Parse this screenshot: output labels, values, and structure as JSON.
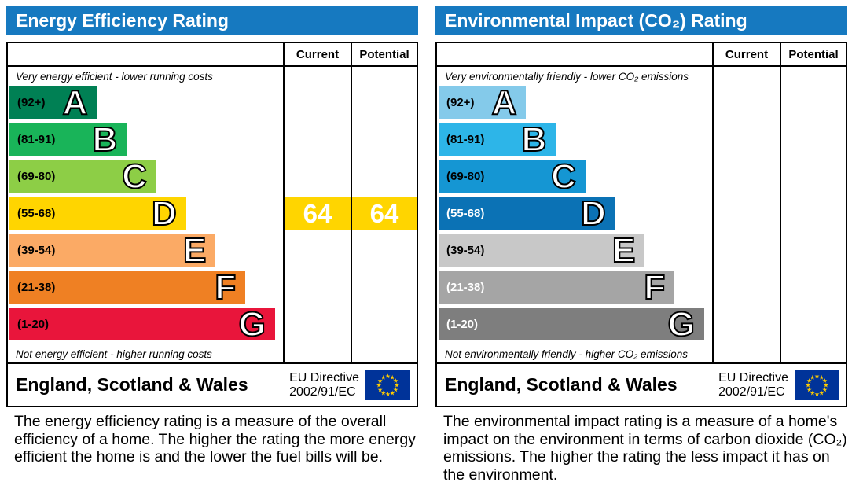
{
  "energy": {
    "title": "Energy Efficiency Rating",
    "columns": {
      "current": "Current",
      "potential": "Potential"
    },
    "top_caption": "Very energy efficient - lower running costs",
    "bottom_caption": "Not energy efficient - higher running costs",
    "bands": [
      {
        "range": "(92+)",
        "letter": "A",
        "color": "#008054",
        "width_pct": 32.0,
        "label_color": "#000000"
      },
      {
        "range": "(81-91)",
        "letter": "B",
        "color": "#19b459",
        "width_pct": 42.9,
        "label_color": "#000000"
      },
      {
        "range": "(69-80)",
        "letter": "C",
        "color": "#8dce46",
        "width_pct": 53.7,
        "label_color": "#000000"
      },
      {
        "range": "(55-68)",
        "letter": "D",
        "color": "#ffd500",
        "width_pct": 64.6,
        "label_color": "#000000"
      },
      {
        "range": "(39-54)",
        "letter": "E",
        "color": "#fbaa65",
        "width_pct": 75.4,
        "label_color": "#000000"
      },
      {
        "range": "(21-38)",
        "letter": "F",
        "color": "#ef8023",
        "width_pct": 86.3,
        "label_color": "#000000"
      },
      {
        "range": "(1-20)",
        "letter": "G",
        "color": "#e9153b",
        "width_pct": 97.1,
        "label_color": "#000000"
      }
    ],
    "ratings": {
      "current": "64",
      "potential": "64",
      "badge_color": "#ffd500"
    },
    "footer": {
      "region": "England, Scotland & Wales",
      "directive_line1": "EU Directive",
      "directive_line2": "2002/91/EC"
    },
    "description": "The energy efficiency rating is a measure of the overall efficiency of a home. The higher the rating the more energy efficient the home is and the lower the fuel bills will be."
  },
  "environment": {
    "title": "Environmental Impact (CO₂) Rating",
    "columns": {
      "current": "Current",
      "potential": "Potential"
    },
    "top_caption": "Very environmentally friendly - lower CO₂ emissions",
    "bottom_caption": "Not environmentally friendly - higher CO₂ emissions",
    "bands": [
      {
        "range": "(92+)",
        "letter": "A",
        "color": "#84caea",
        "width_pct": 32.0,
        "label_color": "#000000"
      },
      {
        "range": "(81-91)",
        "letter": "B",
        "color": "#2db5e8",
        "width_pct": 42.9,
        "label_color": "#000000"
      },
      {
        "range": "(69-80)",
        "letter": "C",
        "color": "#1596d3",
        "width_pct": 53.7,
        "label_color": "#000000"
      },
      {
        "range": "(55-68)",
        "letter": "D",
        "color": "#0b72b5",
        "width_pct": 64.6,
        "label_color": "#ffffff"
      },
      {
        "range": "(39-54)",
        "letter": "E",
        "color": "#c8c8c8",
        "width_pct": 75.4,
        "label_color": "#000000"
      },
      {
        "range": "(21-38)",
        "letter": "F",
        "color": "#a5a5a5",
        "width_pct": 86.3,
        "label_color": "#ffffff"
      },
      {
        "range": "(1-20)",
        "letter": "G",
        "color": "#7e7e7e",
        "width_pct": 97.1,
        "label_color": "#ffffff"
      }
    ],
    "ratings": {
      "current": "",
      "potential": "",
      "badge_color": "#0b72b5"
    },
    "footer": {
      "region": "England, Scotland & Wales",
      "directive_line1": "EU Directive",
      "directive_line2": "2002/91/EC"
    },
    "description": "The environmental impact rating is a measure of a home's impact on the environment in terms of carbon dioxide (CO₂) emissions. The higher the rating the less impact it has on the environment."
  },
  "colors": {
    "header_blue": "#1679c0",
    "flag_blue": "#003399",
    "flag_star": "#ffcc00"
  },
  "chart_data": [
    {
      "type": "bar",
      "title": "Energy Efficiency Rating",
      "categories": [
        "A (92+)",
        "B (81-91)",
        "C (69-80)",
        "D (55-68)",
        "E (39-54)",
        "F (21-38)",
        "G (1-20)"
      ],
      "values": [
        32.0,
        42.9,
        53.7,
        64.6,
        75.4,
        86.3,
        97.1
      ],
      "xlabel": "",
      "ylabel": "",
      "current_rating": 64,
      "current_band": "D",
      "potential_rating": 64,
      "potential_band": "D",
      "legend": [
        "Current",
        "Potential"
      ]
    },
    {
      "type": "bar",
      "title": "Environmental Impact (CO₂) Rating",
      "categories": [
        "A (92+)",
        "B (81-91)",
        "C (69-80)",
        "D (55-68)",
        "E (39-54)",
        "F (21-38)",
        "G (1-20)"
      ],
      "values": [
        32.0,
        42.9,
        53.7,
        64.6,
        75.4,
        86.3,
        97.1
      ],
      "xlabel": "",
      "ylabel": "",
      "current_rating": null,
      "current_band": null,
      "potential_rating": null,
      "potential_band": null,
      "legend": [
        "Current",
        "Potential"
      ]
    }
  ]
}
